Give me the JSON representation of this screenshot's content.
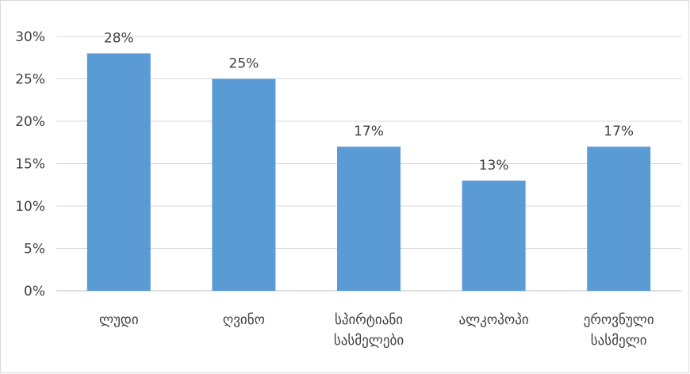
{
  "chart_data": {
    "type": "bar",
    "title": "",
    "xlabel": "",
    "ylabel": "",
    "categories": [
      [
        "ლუდი"
      ],
      [
        "ღვინო"
      ],
      [
        "სპირტიანი",
        "სასმელები"
      ],
      [
        "ალკოპოპი"
      ],
      [
        "ეროვნული",
        "სასმელი"
      ]
    ],
    "values": [
      28,
      25,
      17,
      13,
      17
    ],
    "value_labels": [
      "28%",
      "25%",
      "17%",
      "13%",
      "17%"
    ],
    "ylim": [
      0,
      30
    ],
    "yticks": [
      0,
      5,
      10,
      15,
      20,
      25,
      30
    ],
    "ytick_labels": [
      "0%",
      "5%",
      "10%",
      "15%",
      "20%",
      "25%",
      "30%"
    ],
    "grid": true,
    "legend": "none",
    "bar_color": "#5b9bd5"
  }
}
